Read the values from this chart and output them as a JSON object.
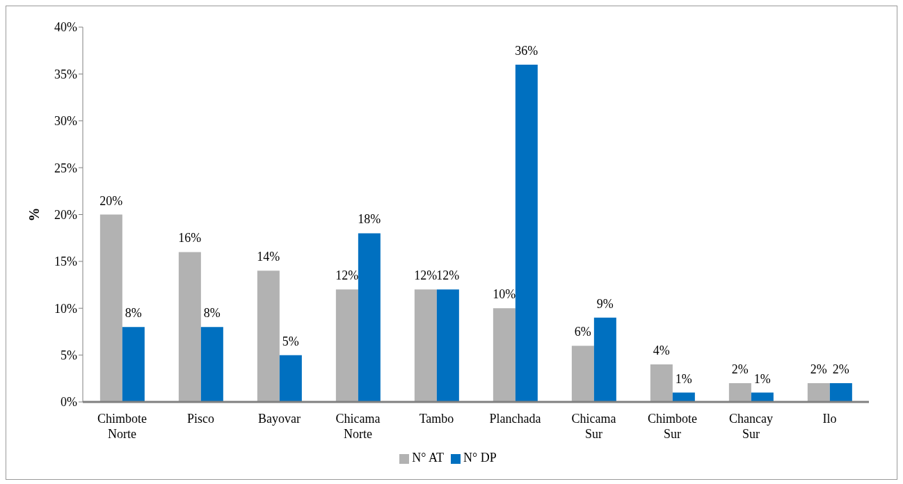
{
  "chart_data": {
    "type": "bar",
    "ylabel": "%",
    "categories": [
      "Chimbote Norte",
      "Pisco",
      "Bayovar",
      "Chicama Norte",
      "Tambo",
      "Planchada",
      "Chicama Sur",
      "Chimbote Sur",
      "Chancay Sur",
      "Ilo"
    ],
    "series": [
      {
        "name": "N° AT",
        "color": "#b2b2b2",
        "values": [
          20,
          16,
          14,
          12,
          12,
          10,
          6,
          4,
          2,
          2
        ],
        "value_labels": [
          "20%",
          "16%",
          "14%",
          "12%",
          "12%",
          "10%",
          "6%",
          "4%",
          "2%",
          "2%"
        ]
      },
      {
        "name": "N° DP",
        "color": "#0070c0",
        "values": [
          8,
          8,
          5,
          18,
          12,
          36,
          9,
          1,
          1,
          2
        ],
        "value_labels": [
          "8%",
          "8%",
          "5%",
          "18%",
          "12%",
          "36%",
          "9%",
          "1%",
          "1%",
          "2%"
        ]
      }
    ],
    "ylim": [
      0,
      40
    ],
    "yticks": [
      {
        "value": 0,
        "label": "0%"
      },
      {
        "value": 5,
        "label": "5%"
      },
      {
        "value": 10,
        "label": "10%"
      },
      {
        "value": 15,
        "label": "15%"
      },
      {
        "value": 20,
        "label": "20%"
      },
      {
        "value": 25,
        "label": "25%"
      },
      {
        "value": 30,
        "label": "30%"
      },
      {
        "value": 35,
        "label": "35%"
      },
      {
        "value": 40,
        "label": "40%"
      }
    ],
    "grid": false,
    "legend": "bottom"
  }
}
